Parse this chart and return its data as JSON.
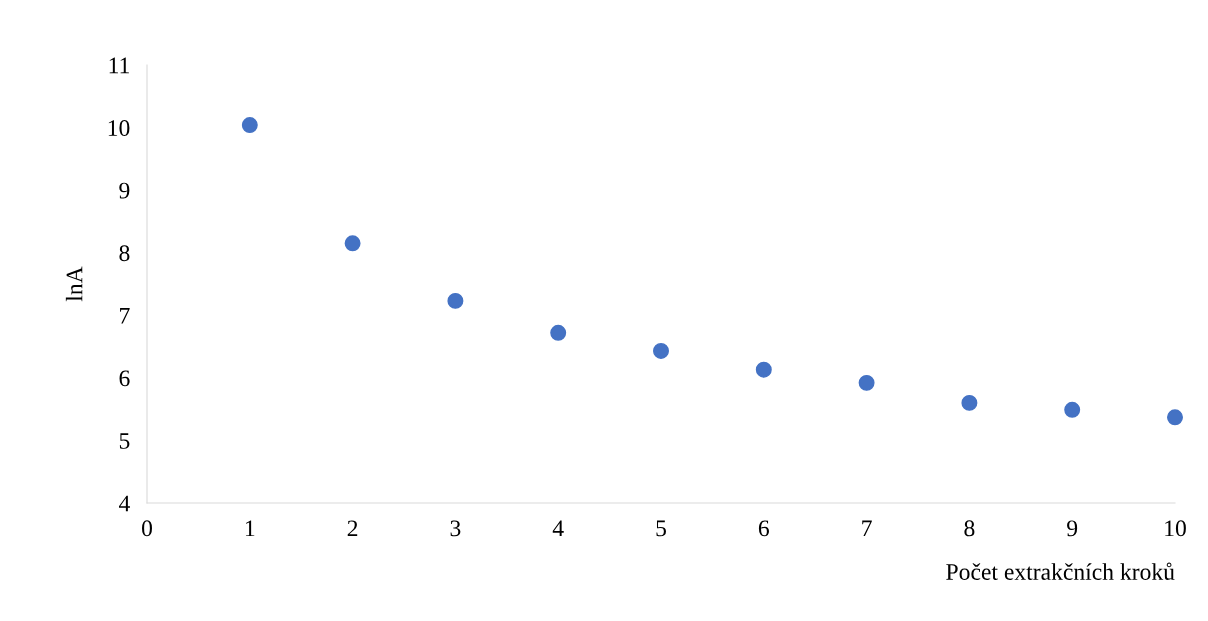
{
  "chart_data": {
    "type": "scatter",
    "xlabel": "Počet extrakčních kroků",
    "ylabel": "lnA",
    "x": [
      1,
      2,
      3,
      4,
      5,
      6,
      7,
      8,
      9,
      10
    ],
    "series": [
      {
        "color": "#4472c4",
        "values": [
          10.04,
          8.15,
          7.23,
          6.72,
          6.43,
          6.13,
          5.92,
          5.6,
          5.49,
          5.37
        ]
      }
    ],
    "xlim": [
      0,
      10
    ],
    "xticks": [
      0,
      1,
      2,
      3,
      4,
      5,
      6,
      7,
      8,
      9,
      10
    ],
    "ylim": [
      4,
      11
    ],
    "yticks": [
      4,
      5,
      6,
      7,
      8,
      9,
      10,
      11
    ],
    "grid": false,
    "legend": false,
    "marker": "circle"
  }
}
